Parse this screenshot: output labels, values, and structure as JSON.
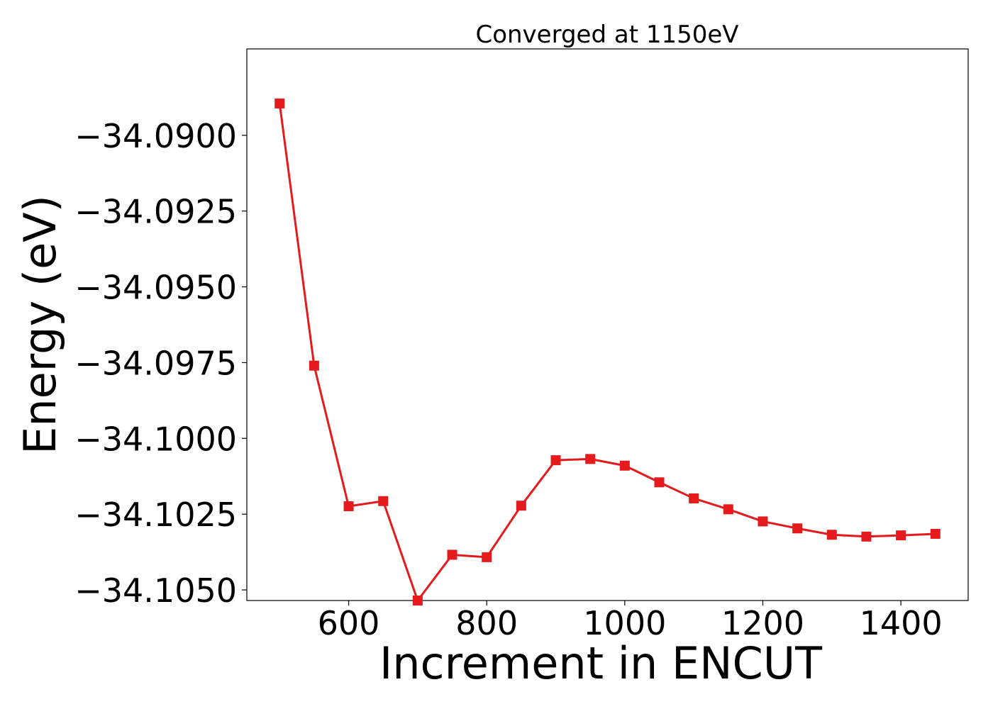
{
  "chart_data": {
    "type": "line",
    "title": "Converged at 1150eV",
    "xlabel": "Increment in ENCUT",
    "ylabel": "Energy (eV)",
    "xlim": [
      452.5,
      1497.5
    ],
    "ylim": [
      -34.10535,
      -34.08715
    ],
    "xticks": [
      600,
      800,
      1000,
      1200,
      1400
    ],
    "yticks": [
      -34.09,
      -34.0925,
      -34.095,
      -34.0975,
      -34.1,
      -34.1025,
      -34.105
    ],
    "ytick_labels": [
      "−34.0900",
      "−34.0925",
      "−34.0950",
      "−34.0975",
      "−34.1000",
      "−34.1025",
      "−34.1050"
    ],
    "grid": false,
    "legend": "none",
    "series": [
      {
        "color": "#e41a1c",
        "marker": "square",
        "x": [
          500,
          550,
          600,
          650,
          700,
          750,
          800,
          850,
          900,
          950,
          1000,
          1050,
          1100,
          1150,
          1200,
          1250,
          1300,
          1350,
          1400,
          1450
        ],
        "y": [
          -34.08895,
          -34.0976,
          -34.10224,
          -34.10207,
          -34.10535,
          -34.10384,
          -34.10392,
          -34.10222,
          -34.10072,
          -34.10068,
          -34.1009,
          -34.10145,
          -34.10198,
          -34.10234,
          -34.10274,
          -34.10297,
          -34.10318,
          -34.10324,
          -34.1032,
          -34.10315
        ]
      }
    ]
  }
}
